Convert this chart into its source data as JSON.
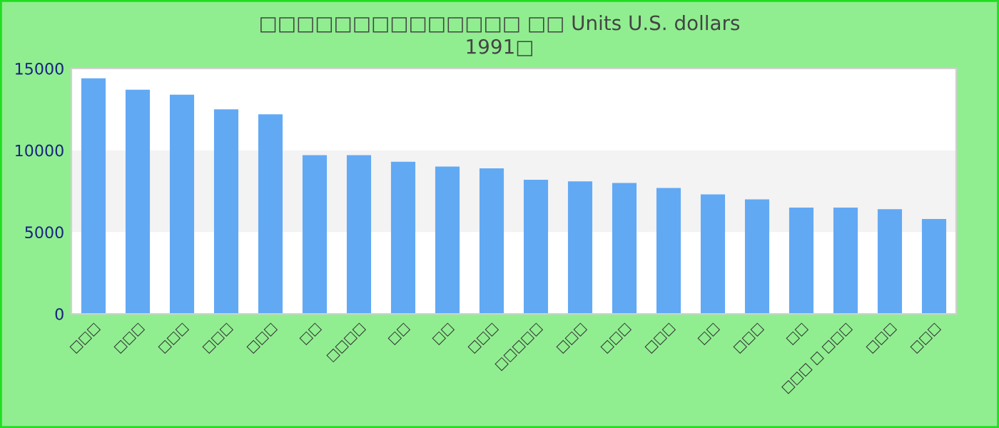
{
  "chart_data": {
    "type": "bar",
    "title": "□□□□□□□□□□□□□□ □□ Units U.S. dollars\n1991□",
    "categories": [
      "□□□",
      "□□□",
      "□□□",
      "□□□",
      "□□□",
      "□□",
      "□□□□",
      "□□",
      "□□",
      "□□□",
      "□□□□□",
      "□□□",
      "□□□",
      "□□□",
      "□□",
      "□□□",
      "□□",
      "□□□ □ □□□",
      "□□□",
      "□□□"
    ],
    "values": [
      14400,
      13700,
      13400,
      12500,
      12200,
      9700,
      9700,
      9300,
      9000,
      8900,
      8200,
      8100,
      8000,
      7700,
      7300,
      7000,
      6500,
      6500,
      6400,
      5800
    ],
    "color": "#62a9f4",
    "ylim": [
      0,
      15000
    ],
    "yticks": [
      0,
      5000,
      10000,
      15000
    ],
    "bands": [
      {
        "axis": "y",
        "from": 5000,
        "to": 10000,
        "color": "#f3f3f3"
      }
    ]
  }
}
